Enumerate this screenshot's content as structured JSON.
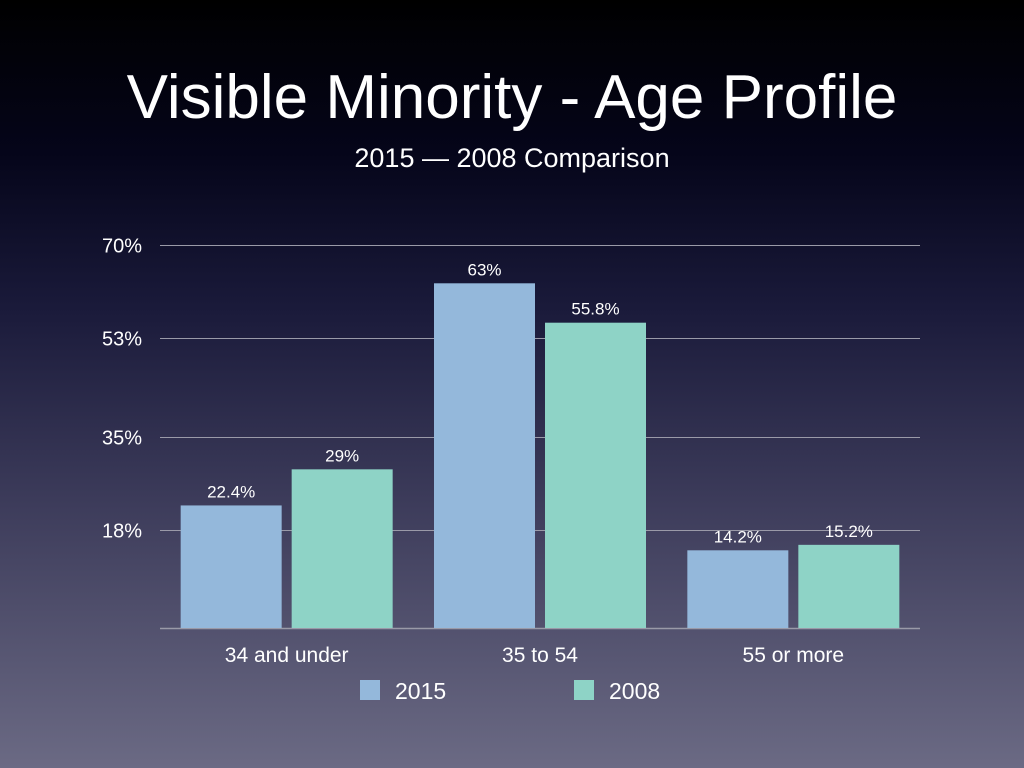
{
  "chart_data": {
    "type": "bar",
    "title": "Visible Minority - Age Profile",
    "subtitle": "2015 — 2008 Comparison",
    "xlabel": "",
    "ylabel": "",
    "ylim": [
      0,
      70
    ],
    "yticks": [
      18,
      35,
      53,
      70
    ],
    "ytick_labels": [
      "18%",
      "35%",
      "53%",
      "70%"
    ],
    "grid": true,
    "legend_position": "bottom-center",
    "categories": [
      "34 and under",
      "35 to 54",
      "55 or more"
    ],
    "series": [
      {
        "name": "2015",
        "color": "#94b8db",
        "values": [
          22.4,
          63,
          14.2
        ],
        "labels": [
          "22.4%",
          "63%",
          "14.2%"
        ]
      },
      {
        "name": "2008",
        "color": "#8ed3c6",
        "values": [
          29,
          55.8,
          15.2
        ],
        "labels": [
          "29%",
          "55.8%",
          "15.2%"
        ]
      }
    ]
  }
}
